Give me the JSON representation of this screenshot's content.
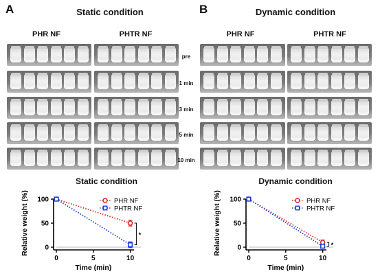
{
  "panels": [
    {
      "letter": "A",
      "title": "Static condition",
      "columns": [
        "PHR NF",
        "PHTR NF"
      ],
      "time_labels": [
        "pre",
        "1 min",
        "3 min",
        "5 min",
        "10 min"
      ]
    },
    {
      "letter": "B",
      "title": "Dynamic condition",
      "columns": [
        "PHR NF",
        "PHTR NF"
      ],
      "time_labels": []
    }
  ],
  "colors": {
    "phr": "#d62728",
    "phtr": "#1f3fd1",
    "axis": "#000000"
  },
  "chart_data": [
    {
      "type": "line",
      "title": "Static condition",
      "xlabel": "Time (min)",
      "ylabel": "Relative weight (%)",
      "x": [
        0,
        10
      ],
      "xticks": [
        "0",
        "5",
        "10"
      ],
      "yticks": [
        "0",
        "50",
        "100"
      ],
      "xlim": [
        0,
        10.5
      ],
      "ylim": [
        0,
        100
      ],
      "series": [
        {
          "name": "PHR NF",
          "values": [
            100,
            50
          ],
          "errors": [
            0,
            6
          ]
        },
        {
          "name": "PHTR NF",
          "values": [
            100,
            5
          ],
          "errors": [
            0,
            6
          ]
        }
      ],
      "legend_position": "top-right",
      "significance": "*"
    },
    {
      "type": "line",
      "title": "Dynamic condition",
      "xlabel": "Time (min)",
      "ylabel": "Relative weight (%)",
      "x": [
        0,
        10
      ],
      "xticks": [
        "0",
        "5",
        "10"
      ],
      "yticks": [
        "0",
        "50",
        "100"
      ],
      "xlim": [
        0,
        10.5
      ],
      "ylim": [
        0,
        100
      ],
      "series": [
        {
          "name": "PHR NF",
          "values": [
            100,
            10
          ],
          "errors": [
            0,
            5
          ]
        },
        {
          "name": "PHTR NF",
          "values": [
            100,
            2
          ],
          "errors": [
            0,
            4
          ]
        }
      ],
      "legend_position": "top-right",
      "significance": "*"
    }
  ]
}
